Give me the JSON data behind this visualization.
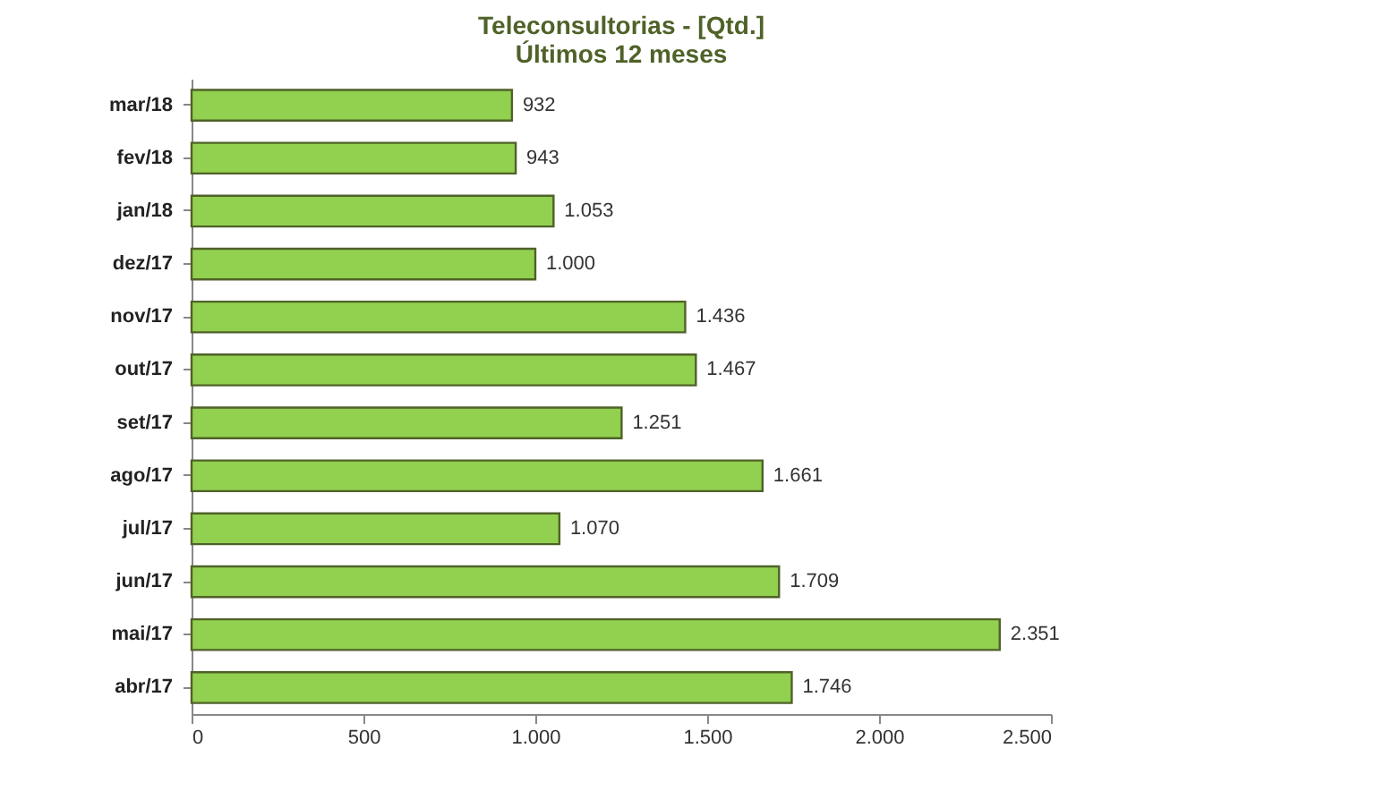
{
  "chart_data": {
    "type": "bar",
    "orientation": "horizontal",
    "title": "Teleconsultorias -  [Qtd.]\nÚltimos 12 meses",
    "categories": [
      "mar/18",
      "fev/18",
      "jan/18",
      "dez/17",
      "nov/17",
      "out/17",
      "set/17",
      "ago/17",
      "jul/17",
      "jun/17",
      "mai/17",
      "abr/17"
    ],
    "values": [
      932,
      943,
      1053,
      1000,
      1436,
      1467,
      1251,
      1661,
      1070,
      1709,
      2351,
      1746
    ],
    "value_labels": [
      "932",
      "943",
      "1.053",
      "1.000",
      "1.436",
      "1.467",
      "1.251",
      "1.661",
      "1.070",
      "1.709",
      "2.351",
      "1.746"
    ],
    "color": "#92d050",
    "xlim": [
      0,
      2500
    ],
    "xticks": [
      0,
      500,
      {
        "value": 1000,
        "label": "1.000"
      },
      {
        "value": 1500,
        "label": "1.500"
      },
      {
        "value": 2000,
        "label": "2.000"
      },
      {
        "value": 2500,
        "label": "2.500"
      }
    ],
    "grid": false
  }
}
